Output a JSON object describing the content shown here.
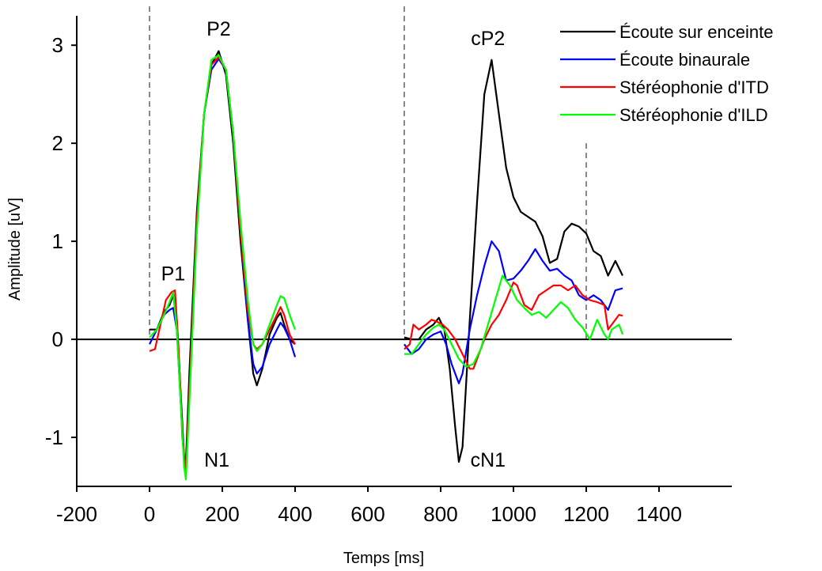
{
  "chart_data": {
    "type": "line",
    "xlabel": "Temps [ms]",
    "ylabel": "Amplitude [uV]",
    "xlim": [
      -200,
      1600
    ],
    "ylim": [
      -1.5,
      3.3
    ],
    "xticks": [
      -200,
      0,
      200,
      400,
      600,
      800,
      1000,
      1200,
      1400
    ],
    "yticks": [
      -1,
      0,
      1,
      2,
      3
    ],
    "legend_position": "top-right",
    "vlines": [
      0,
      700,
      1200
    ],
    "annotations": [
      {
        "text": "P1",
        "x": 65,
        "y": 0.6
      },
      {
        "text": "P2",
        "x": 190,
        "y": 3.1
      },
      {
        "text": "N1",
        "x": 185,
        "y": -1.3
      },
      {
        "text": "cP2",
        "x": 930,
        "y": 3.0
      },
      {
        "text": "cN1",
        "x": 930,
        "y": -1.3
      }
    ],
    "series": [
      {
        "name": "Écoute sur enceinte",
        "color": "#000000",
        "x": [
          0,
          20,
          40,
          55,
          65,
          75,
          85,
          95,
          100,
          110,
          130,
          150,
          170,
          190,
          210,
          230,
          250,
          270,
          285,
          295,
          310,
          330,
          350,
          360,
          370,
          385,
          400,
          700,
          720,
          740,
          760,
          780,
          795,
          810,
          825,
          840,
          850,
          860,
          880,
          900,
          920,
          940,
          960,
          980,
          1000,
          1020,
          1040,
          1060,
          1080,
          1100,
          1120,
          1140,
          1160,
          1180,
          1200,
          1220,
          1240,
          1260,
          1280,
          1300
        ],
        "y": [
          0.1,
          0.1,
          0.28,
          0.35,
          0.45,
          0.2,
          -0.5,
          -1.2,
          -1.25,
          -0.3,
          1.3,
          2.3,
          2.8,
          2.94,
          2.7,
          2.0,
          1.0,
          0.2,
          -0.35,
          -0.47,
          -0.3,
          0.05,
          0.22,
          0.27,
          0.15,
          0.0,
          -0.05,
          0.02,
          0.0,
          0.0,
          0.1,
          0.15,
          0.22,
          0.1,
          -0.3,
          -0.9,
          -1.25,
          -1.1,
          0.2,
          1.4,
          2.5,
          2.85,
          2.3,
          1.75,
          1.45,
          1.3,
          1.25,
          1.2,
          1.05,
          0.78,
          0.82,
          1.1,
          1.18,
          1.15,
          1.08,
          0.9,
          0.85,
          0.65,
          0.8,
          0.65
        ]
      },
      {
        "name": "Écoute binaurale",
        "color": "#0000ff",
        "x": [
          0,
          20,
          40,
          55,
          65,
          75,
          85,
          95,
          100,
          110,
          130,
          150,
          170,
          190,
          210,
          230,
          250,
          270,
          285,
          295,
          310,
          330,
          350,
          360,
          370,
          385,
          400,
          700,
          720,
          740,
          760,
          780,
          800,
          815,
          830,
          850,
          860,
          880,
          900,
          920,
          940,
          960,
          980,
          1000,
          1020,
          1040,
          1060,
          1080,
          1100,
          1120,
          1140,
          1160,
          1180,
          1200,
          1220,
          1240,
          1260,
          1280,
          1300
        ],
        "y": [
          -0.05,
          0.1,
          0.25,
          0.3,
          0.32,
          0.1,
          -0.6,
          -1.25,
          -1.35,
          -0.5,
          1.2,
          2.3,
          2.75,
          2.86,
          2.75,
          2.1,
          1.1,
          0.2,
          -0.25,
          -0.35,
          -0.28,
          -0.05,
          0.1,
          0.17,
          0.12,
          0.0,
          -0.18,
          -0.05,
          -0.15,
          -0.1,
          0.0,
          0.05,
          0.08,
          -0.05,
          -0.25,
          -0.45,
          -0.35,
          0.1,
          0.45,
          0.75,
          1.0,
          0.9,
          0.6,
          0.62,
          0.7,
          0.8,
          0.92,
          0.8,
          0.7,
          0.72,
          0.65,
          0.6,
          0.45,
          0.4,
          0.45,
          0.4,
          0.3,
          0.5,
          0.52
        ]
      },
      {
        "name": "Stéréophonie d'ITD",
        "color": "#ff0000",
        "x": [
          0,
          15,
          30,
          45,
          60,
          70,
          80,
          90,
          100,
          110,
          130,
          150,
          170,
          190,
          210,
          230,
          250,
          270,
          285,
          295,
          310,
          330,
          350,
          360,
          370,
          385,
          400,
          700,
          715,
          725,
          740,
          760,
          775,
          790,
          805,
          820,
          840,
          860,
          880,
          890,
          900,
          920,
          940,
          960,
          980,
          1000,
          1010,
          1030,
          1050,
          1070,
          1090,
          1110,
          1130,
          1150,
          1170,
          1190,
          1210,
          1230,
          1250,
          1260,
          1270,
          1290,
          1300
        ],
        "y": [
          -0.12,
          -0.1,
          0.15,
          0.4,
          0.48,
          0.5,
          -0.1,
          -1.0,
          -1.35,
          -0.5,
          1.2,
          2.3,
          2.8,
          2.88,
          2.75,
          2.1,
          1.1,
          0.3,
          -0.05,
          -0.1,
          -0.05,
          0.1,
          0.25,
          0.33,
          0.25,
          0.05,
          -0.05,
          -0.1,
          -0.05,
          0.15,
          0.1,
          0.15,
          0.2,
          0.18,
          0.15,
          0.1,
          0.0,
          -0.15,
          -0.3,
          -0.3,
          -0.2,
          0.0,
          0.15,
          0.25,
          0.4,
          0.58,
          0.55,
          0.35,
          0.3,
          0.45,
          0.5,
          0.55,
          0.55,
          0.5,
          0.55,
          0.45,
          0.4,
          0.38,
          0.35,
          0.1,
          0.15,
          0.25,
          0.24
        ]
      },
      {
        "name": "Stéréophonie d'ILD",
        "color": "#00ff00",
        "x": [
          0,
          20,
          40,
          55,
          65,
          75,
          85,
          95,
          100,
          110,
          130,
          150,
          170,
          190,
          210,
          230,
          250,
          270,
          285,
          295,
          310,
          330,
          350,
          360,
          370,
          385,
          400,
          700,
          720,
          740,
          760,
          780,
          795,
          810,
          830,
          850,
          870,
          890,
          910,
          930,
          950,
          970,
          990,
          1010,
          1030,
          1050,
          1070,
          1090,
          1110,
          1130,
          1150,
          1170,
          1190,
          1210,
          1230,
          1250,
          1260,
          1270,
          1290,
          1300
        ],
        "y": [
          0.02,
          0.1,
          0.25,
          0.38,
          0.48,
          0.1,
          -0.6,
          -1.3,
          -1.43,
          -0.6,
          1.1,
          2.3,
          2.85,
          2.9,
          2.75,
          2.1,
          1.2,
          0.4,
          -0.05,
          -0.12,
          -0.05,
          0.15,
          0.35,
          0.44,
          0.42,
          0.25,
          0.1,
          -0.15,
          -0.15,
          -0.05,
          0.05,
          0.12,
          0.15,
          0.1,
          -0.05,
          -0.2,
          -0.28,
          -0.25,
          -0.1,
          0.15,
          0.4,
          0.65,
          0.55,
          0.4,
          0.32,
          0.25,
          0.28,
          0.22,
          0.3,
          0.38,
          0.32,
          0.2,
          0.12,
          0.0,
          0.2,
          0.05,
          0.0,
          0.1,
          0.15,
          0.05
        ]
      }
    ]
  }
}
